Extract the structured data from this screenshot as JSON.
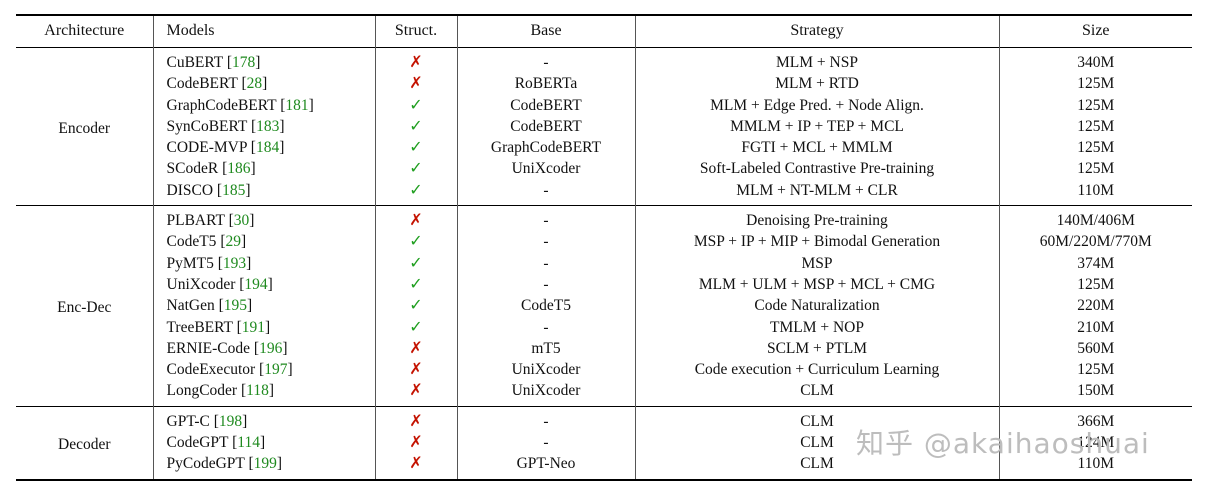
{
  "watermark": "知乎 @akaihaoshuai",
  "colors": {
    "check": "#1e9e1e",
    "cross": "#c41200",
    "citation": "#1f8a1f"
  },
  "icons": {
    "check": "✓",
    "cross": "✗"
  },
  "table": {
    "headers": [
      "Architecture",
      "Models",
      "Struct.",
      "Base",
      "Strategy",
      "Size"
    ],
    "groups": [
      {
        "architecture": "Encoder",
        "rows": [
          {
            "model": "CuBERT",
            "cite": "178",
            "struct": false,
            "base": "-",
            "strategy": "MLM + NSP",
            "size": "340M"
          },
          {
            "model": "CodeBERT",
            "cite": "28",
            "struct": false,
            "base": "RoBERTa",
            "strategy": "MLM + RTD",
            "size": "125M"
          },
          {
            "model": "GraphCodeBERT",
            "cite": "181",
            "struct": true,
            "base": "CodeBERT",
            "strategy": "MLM + Edge Pred. + Node Align.",
            "size": "125M"
          },
          {
            "model": "SynCoBERT",
            "cite": "183",
            "struct": true,
            "base": "CodeBERT",
            "strategy": "MMLM + IP + TEP + MCL",
            "size": "125M"
          },
          {
            "model": "CODE-MVP",
            "cite": "184",
            "struct": true,
            "base": "GraphCodeBERT",
            "strategy": "FGTI + MCL + MMLM",
            "size": "125M"
          },
          {
            "model": "SCodeR",
            "cite": "186",
            "struct": true,
            "base": "UniXcoder",
            "strategy": "Soft-Labeled Contrastive Pre-training",
            "size": "125M"
          },
          {
            "model": "DISCO",
            "cite": "185",
            "struct": true,
            "base": "-",
            "strategy": "MLM + NT-MLM + CLR",
            "size": "110M"
          }
        ]
      },
      {
        "architecture": "Enc-Dec",
        "rows": [
          {
            "model": "PLBART",
            "cite": "30",
            "struct": false,
            "base": "-",
            "strategy": "Denoising Pre-training",
            "size": "140M/406M"
          },
          {
            "model": "CodeT5",
            "cite": "29",
            "struct": true,
            "base": "-",
            "strategy": "MSP + IP + MIP + Bimodal Generation",
            "size": "60M/220M/770M"
          },
          {
            "model": "PyMT5",
            "cite": "193",
            "struct": true,
            "base": "-",
            "strategy": "MSP",
            "size": "374M"
          },
          {
            "model": "UniXcoder",
            "cite": "194",
            "struct": true,
            "base": "-",
            "strategy": "MLM + ULM + MSP + MCL + CMG",
            "size": "125M"
          },
          {
            "model": "NatGen",
            "cite": "195",
            "struct": true,
            "base": "CodeT5",
            "strategy": "Code Naturalization",
            "size": "220M"
          },
          {
            "model": "TreeBERT",
            "cite": "191",
            "struct": true,
            "base": "-",
            "strategy": "TMLM + NOP",
            "size": "210M"
          },
          {
            "model": "ERNIE-Code",
            "cite": "196",
            "struct": false,
            "base": "mT5",
            "strategy": "SCLM + PTLM",
            "size": "560M"
          },
          {
            "model": "CodeExecutor",
            "cite": "197",
            "struct": false,
            "base": "UniXcoder",
            "strategy": "Code execution + Curriculum Learning",
            "size": "125M"
          },
          {
            "model": "LongCoder",
            "cite": "118",
            "struct": false,
            "base": "UniXcoder",
            "strategy": "CLM",
            "size": "150M"
          }
        ]
      },
      {
        "architecture": "Decoder",
        "rows": [
          {
            "model": "GPT-C",
            "cite": "198",
            "struct": false,
            "base": "-",
            "strategy": "CLM",
            "size": "366M"
          },
          {
            "model": "CodeGPT",
            "cite": "114",
            "struct": false,
            "base": "-",
            "strategy": "CLM",
            "size": "124M"
          },
          {
            "model": "PyCodeGPT",
            "cite": "199",
            "struct": false,
            "base": "GPT-Neo",
            "strategy": "CLM",
            "size": "110M"
          }
        ]
      }
    ]
  }
}
